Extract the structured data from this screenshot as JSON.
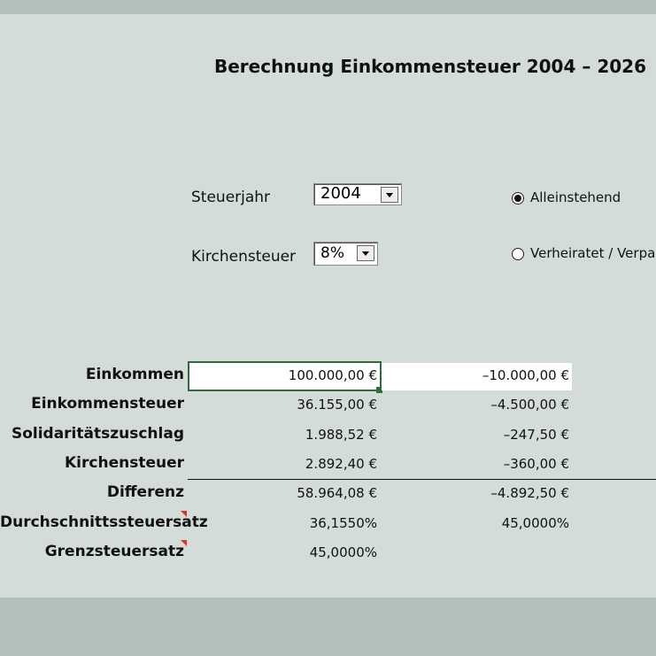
{
  "title": "Berechnung Einkommensteuer 2004 – 2026",
  "controls": {
    "steuerjahr": {
      "label": "Steuerjahr",
      "value": "2004"
    },
    "kirchensteuer": {
      "label": "Kirchensteuer",
      "value": "8%"
    },
    "radios": [
      {
        "label": "Alleinstehend",
        "selected": true
      },
      {
        "label": "Verheiratet / Verpar",
        "selected": false
      }
    ]
  },
  "table": {
    "rows": [
      [
        "Einkommen",
        "100.000,00 €",
        "–10.000,00 €"
      ],
      [
        "Einkommensteuer",
        "36.155,00 €",
        "–4.500,00 €"
      ],
      [
        "Solidaritätszuschlag",
        "1.988,52 €",
        "–247,50 €"
      ],
      [
        "Kirchensteuer",
        "2.892,40 €",
        "–360,00 €"
      ],
      [
        "Differenz",
        "58.964,08 €",
        "–4.892,50 €"
      ],
      [
        "Durchschnittssteuersatz",
        "36,1550%",
        "45,0000%"
      ],
      [
        "Grenzsteuersatz",
        "45,0000%"
      ]
    ]
  }
}
